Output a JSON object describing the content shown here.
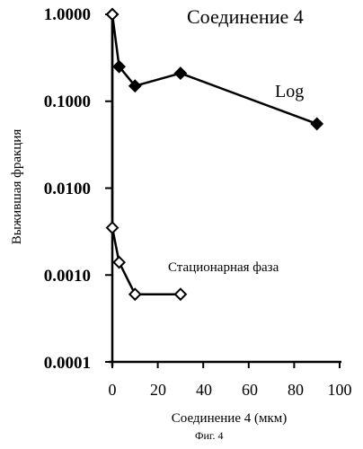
{
  "chart_data": {
    "type": "line",
    "title": "Соединение 4",
    "xlabel": "Соединение 4 (мкм)",
    "ylabel": "Выжившая фракция",
    "y_scale": "log",
    "xlim": [
      0,
      100
    ],
    "ylim": [
      0.0001,
      1.0
    ],
    "x_ticks": [
      "0",
      "20",
      "40",
      "60",
      "80",
      "100"
    ],
    "y_ticks": [
      "1.0000",
      "0.1000",
      "0.0100",
      "0.0010",
      "0.0001"
    ],
    "grid": false,
    "series": [
      {
        "name": "Log",
        "marker": "filled-diamond",
        "color": "#000000",
        "x": [
          0,
          3,
          10,
          30,
          90
        ],
        "y": [
          1.0,
          0.25,
          0.15,
          0.21,
          0.055
        ]
      },
      {
        "name": "Стационарная фаза",
        "marker": "open-diamond",
        "color": "#000000",
        "x": [
          0,
          0,
          3,
          10,
          30
        ],
        "y": [
          1.0,
          0.0035,
          0.0014,
          0.0006,
          0.0006
        ]
      }
    ],
    "caption": "Фиг. 4"
  }
}
